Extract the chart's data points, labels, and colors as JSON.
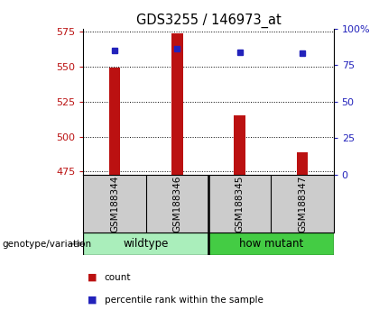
{
  "title": "GDS3255 / 146973_at",
  "samples": [
    "GSM188344",
    "GSM188346",
    "GSM188345",
    "GSM188347"
  ],
  "count_values": [
    549.5,
    574.0,
    515.0,
    489.0
  ],
  "percentile_values": [
    85.0,
    86.0,
    84.0,
    83.5
  ],
  "ylim_left": [
    473,
    577
  ],
  "ylim_right": [
    0,
    100
  ],
  "yticks_left": [
    475,
    500,
    525,
    550,
    575
  ],
  "yticks_right": [
    0,
    25,
    50,
    75,
    100
  ],
  "bar_color": "#BB1111",
  "dot_color": "#2222BB",
  "groups": [
    {
      "label": "wildtype",
      "samples": [
        0,
        1
      ],
      "color": "#AAEEBB"
    },
    {
      "label": "how mutant",
      "samples": [
        2,
        3
      ],
      "color": "#44CC44"
    }
  ],
  "group_label": "genotype/variation",
  "legend_count": "count",
  "legend_percentile": "percentile rank within the sample",
  "bar_bottom": 473,
  "x_positions": [
    0,
    1,
    2,
    3
  ]
}
